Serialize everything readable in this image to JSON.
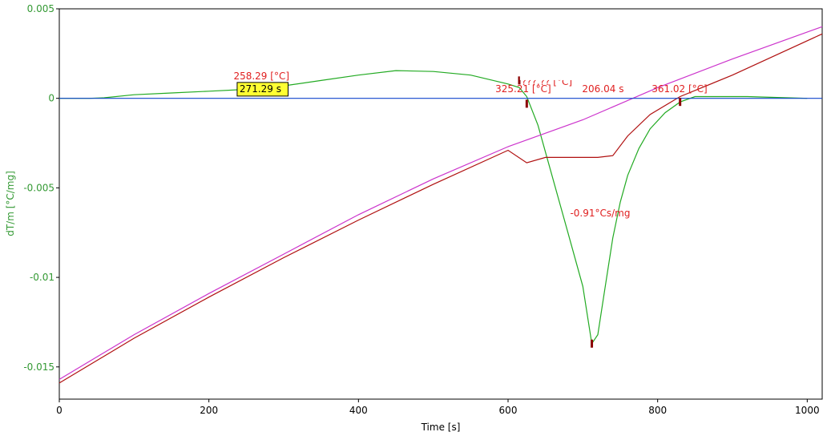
{
  "chart_data": {
    "type": "line",
    "xlabel": "Time [s]",
    "ylabel": "dT/m  [°C/mg]",
    "xlim": [
      0,
      1020
    ],
    "ylim": [
      -0.0168,
      0.005
    ],
    "x_ticks": [
      0,
      200,
      400,
      600,
      800,
      1000
    ],
    "x_tick_labels": [
      "0",
      "200",
      "400",
      "600",
      "800",
      "1000"
    ],
    "y_ticks": [
      0.005,
      0,
      -0.005,
      -0.01,
      -0.015
    ],
    "y_tick_labels": [
      "0.005",
      "0",
      "-0.005",
      "-0.01",
      "-0.015"
    ],
    "grid": false,
    "colors": {
      "green": "#22aa22",
      "magenta": "#cc33cc",
      "darkred": "#b01010",
      "blue": "#1144cc",
      "annotation_red": "#e02020",
      "axis_green": "#339933",
      "highlight_yellow": "#ffff33",
      "marker": "#8b0000"
    },
    "series": [
      {
        "color": "green",
        "x": [
          0,
          40,
          60,
          100,
          150,
          200,
          250,
          300,
          350,
          400,
          450,
          500,
          550,
          600,
          615,
          625,
          640,
          660,
          680,
          700,
          712,
          720,
          730,
          740,
          750,
          760,
          775,
          790,
          810,
          830,
          850,
          880,
          920,
          960,
          1000
        ],
        "y": [
          0,
          0,
          3e-05,
          0.0002,
          0.0003,
          0.0004,
          0.0005,
          0.0007,
          0.001,
          0.0013,
          0.00155,
          0.0015,
          0.0013,
          0.0008,
          0.0006,
          0.0001,
          -0.0015,
          -0.0045,
          -0.0075,
          -0.0105,
          -0.0137,
          -0.0132,
          -0.0105,
          -0.0078,
          -0.0058,
          -0.0043,
          -0.0028,
          -0.0017,
          -0.0008,
          -0.0002,
          0.0001,
          0.0001,
          0.0001,
          5e-05,
          0
        ]
      },
      {
        "color": "magenta",
        "x": [
          0,
          100,
          200,
          300,
          400,
          500,
          600,
          700,
          800,
          900,
          1020
        ],
        "y": [
          -0.0157,
          -0.0132,
          -0.0109,
          -0.0087,
          -0.0065,
          -0.0045,
          -0.0027,
          -0.0012,
          0.0006,
          0.0022,
          0.004
        ]
      },
      {
        "color": "darkred",
        "x": [
          0,
          100,
          200,
          300,
          400,
          500,
          600,
          625,
          650,
          680,
          720,
          740,
          760,
          790,
          830,
          900,
          1020
        ],
        "y": [
          -0.0159,
          -0.0134,
          -0.0111,
          -0.0089,
          -0.0068,
          -0.0048,
          -0.0029,
          -0.0036,
          -0.0033,
          -0.0033,
          -0.0033,
          -0.0032,
          -0.0021,
          -0.0009,
          0.0001,
          0.0013,
          0.0036
        ]
      },
      {
        "color": "blue",
        "x": [
          0,
          1020
        ],
        "y": [
          0,
          0
        ]
      }
    ],
    "markers": [
      {
        "x": 615,
        "y": 0.001
      },
      {
        "x": 625,
        "y": -0.0003
      },
      {
        "x": 712,
        "y": -0.0137
      },
      {
        "x": 830,
        "y": -0.0002
      }
    ],
    "annotations": [
      {
        "text": "258.29 [°C]",
        "x": 233,
        "y": 0.00105,
        "color": "annotation_red"
      },
      {
        "text": "271.29 s",
        "x": 241,
        "y": 0.00035,
        "color": "black",
        "boxed": true
      },
      {
        "text": "???.?? [°C]",
        "x": 618,
        "y": 0.00075,
        "color": "annotation_red",
        "clipped": true
      },
      {
        "text": "325.21 [°C]",
        "x": 583,
        "y": 0.00035,
        "color": "annotation_red"
      },
      {
        "text": "206.04 s",
        "x": 699,
        "y": 0.00035,
        "color": "annotation_red"
      },
      {
        "text": "361.02 [°C]",
        "x": 792,
        "y": 0.00035,
        "color": "annotation_red"
      },
      {
        "text": "-0.91°Cs/mg",
        "x": 683,
        "y": -0.0066,
        "color": "annotation_red"
      }
    ]
  }
}
